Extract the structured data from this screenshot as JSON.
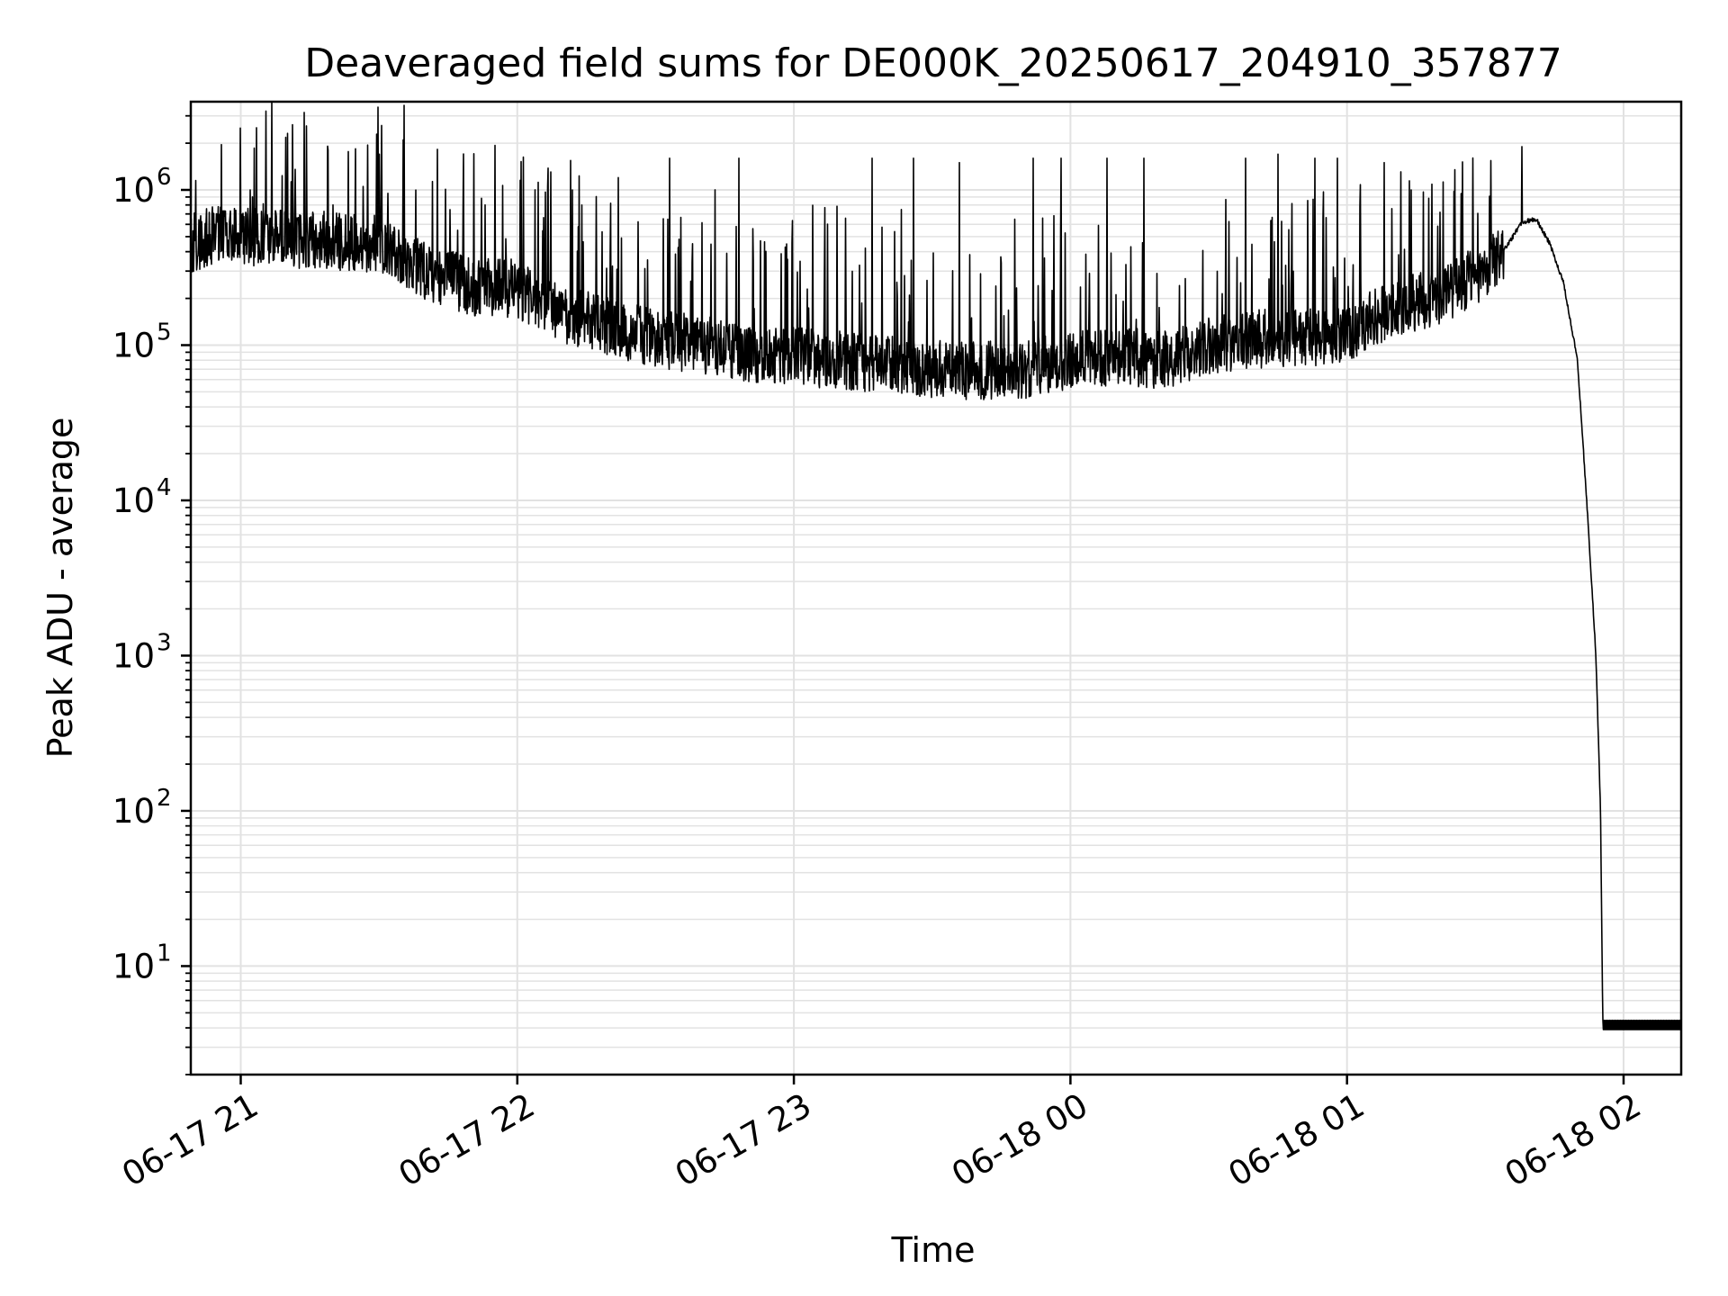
{
  "chart_data": {
    "type": "line",
    "title": "Deaveraged field sums for DE000K_20250617_204910_357877",
    "xlabel": "Time",
    "ylabel": "Peak ADU - average",
    "x_axis": {
      "kind": "time",
      "range": [
        "2025-06-17T20:49:10",
        "2025-06-18T02:12:30"
      ],
      "ticks": [
        {
          "value": "2025-06-17T21:00:00",
          "label": "06-17 21"
        },
        {
          "value": "2025-06-17T22:00:00",
          "label": "06-17 22"
        },
        {
          "value": "2025-06-17T23:00:00",
          "label": "06-17 23"
        },
        {
          "value": "2025-06-18T00:00:00",
          "label": "06-18 00"
        },
        {
          "value": "2025-06-18T01:00:00",
          "label": "06-18 01"
        },
        {
          "value": "2025-06-18T02:00:00",
          "label": "06-18 02"
        }
      ]
    },
    "y_axis": {
      "scale": "log",
      "range": [
        2,
        3700000
      ],
      "ticks": [
        {
          "value": 10,
          "base": "10",
          "exp": "1"
        },
        {
          "value": 100,
          "base": "10",
          "exp": "2"
        },
        {
          "value": 1000,
          "base": "10",
          "exp": "3"
        },
        {
          "value": 10000,
          "base": "10",
          "exp": "4"
        },
        {
          "value": 100000,
          "base": "10",
          "exp": "5"
        },
        {
          "value": 1000000,
          "base": "10",
          "exp": "6"
        }
      ]
    },
    "grid": true,
    "legend": false,
    "line_color": "#000000",
    "series": [
      {
        "x": [
          "2025-06-17T20:49:10",
          "2025-06-17T20:55:00",
          "2025-06-17T21:00:00",
          "2025-06-17T21:10:00",
          "2025-06-17T21:20:00",
          "2025-06-17T21:30:00",
          "2025-06-17T21:40:00",
          "2025-06-17T21:50:00",
          "2025-06-17T22:00:00",
          "2025-06-17T22:10:00",
          "2025-06-17T22:20:00",
          "2025-06-17T22:30:00",
          "2025-06-17T22:40:00",
          "2025-06-17T22:50:00",
          "2025-06-17T23:00:00",
          "2025-06-17T23:10:00",
          "2025-06-17T23:20:00",
          "2025-06-17T23:30:00",
          "2025-06-17T23:40:00",
          "2025-06-17T23:50:00",
          "2025-06-18T00:00:00",
          "2025-06-18T00:10:00",
          "2025-06-18T00:20:00",
          "2025-06-18T00:30:00",
          "2025-06-18T00:40:00",
          "2025-06-18T00:50:00",
          "2025-06-18T01:00:00",
          "2025-06-18T01:10:00",
          "2025-06-18T01:20:00",
          "2025-06-18T01:25:00",
          "2025-06-18T01:30:00",
          "2025-06-18T01:35:00",
          "2025-06-18T01:38:00",
          "2025-06-18T01:41:00",
          "2025-06-18T01:44:00",
          "2025-06-18T01:47:00",
          "2025-06-18T01:50:00",
          "2025-06-18T01:52:00",
          "2025-06-18T01:54:00",
          "2025-06-18T01:55:00",
          "2025-06-18T01:55:30",
          "2025-06-18T01:56:00",
          "2025-06-18T01:57:00",
          "2025-06-18T02:05:00",
          "2025-06-18T02:12:30"
        ],
        "y": [
          450000,
          520000,
          500000,
          480000,
          470000,
          450000,
          300000,
          240000,
          230000,
          160000,
          130000,
          110000,
          100000,
          90000,
          85000,
          80000,
          75000,
          70000,
          68000,
          70000,
          80000,
          85000,
          80000,
          100000,
          110000,
          110000,
          120000,
          170000,
          210000,
          250000,
          300000,
          450000,
          620000,
          650000,
          450000,
          250000,
          80000,
          10000,
          1000,
          100,
          3.9,
          3.9,
          3.9,
          3.9,
          3.9
        ],
        "spikes": [
          {
            "x": "2025-06-17T21:02:00",
            "y": 1000000
          },
          {
            "x": "2025-06-17T21:20:00",
            "y": 800000
          },
          {
            "x": "2025-06-17T21:53:00",
            "y": 800000
          },
          {
            "x": "2025-06-17T22:12:00",
            "y": 1000000
          },
          {
            "x": "2025-06-17T22:22:00",
            "y": 1200000
          },
          {
            "x": "2025-06-17T22:33:00",
            "y": 1600000
          },
          {
            "x": "2025-06-17T22:48:00",
            "y": 1600000
          },
          {
            "x": "2025-06-17T23:17:00",
            "y": 1600000
          },
          {
            "x": "2025-06-17T23:26:00",
            "y": 1600000
          },
          {
            "x": "2025-06-17T23:36:00",
            "y": 1500000
          },
          {
            "x": "2025-06-17T23:52:00",
            "y": 1600000
          },
          {
            "x": "2025-06-17T23:58:00",
            "y": 1600000
          },
          {
            "x": "2025-06-18T00:08:00",
            "y": 1600000
          },
          {
            "x": "2025-06-18T00:16:00",
            "y": 1600000
          },
          {
            "x": "2025-06-18T00:38:00",
            "y": 1600000
          },
          {
            "x": "2025-06-18T00:45:00",
            "y": 1700000
          },
          {
            "x": "2025-06-18T00:53:00",
            "y": 1600000
          },
          {
            "x": "2025-06-18T00:58:00",
            "y": 1600000
          },
          {
            "x": "2025-06-18T01:08:00",
            "y": 1500000
          },
          {
            "x": "2025-06-18T01:14:00",
            "y": 1000000
          },
          {
            "x": "2025-06-18T01:38:00",
            "y": 1900000
          }
        ]
      }
    ]
  }
}
